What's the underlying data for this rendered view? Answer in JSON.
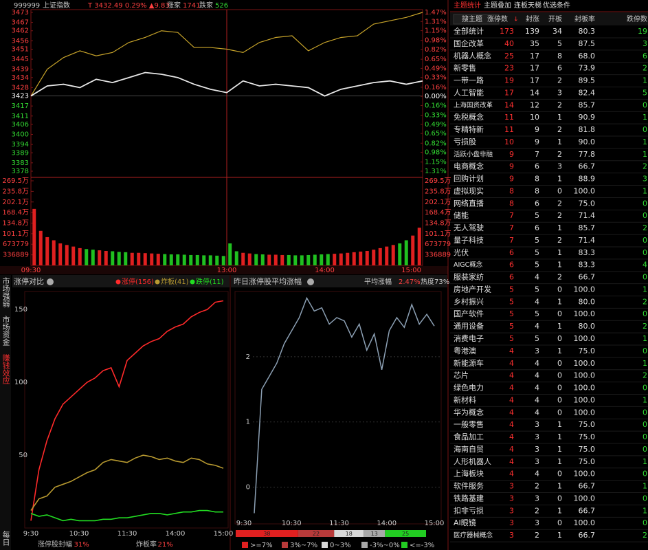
{
  "header": {
    "code": "999999",
    "name": "上证指数",
    "quote": "T 3432.49 0.29% ▲9.83",
    "up_label": "涨家",
    "up": "1741",
    "down_label": "跌家",
    "down": "526"
  },
  "intraday": {
    "price_lim": [
      3378,
      3473
    ],
    "price_ticks": [
      3473,
      3467,
      3462,
      3456,
      3451,
      3445,
      3439,
      3434,
      3428,
      3423,
      3417,
      3411,
      3406,
      3400,
      3394,
      3389,
      3383,
      3378
    ],
    "pct_ticks": [
      {
        "value": 1.47,
        "label": "1.47%"
      },
      {
        "value": 1.31,
        "label": "1.31%"
      },
      {
        "value": 1.15,
        "label": "1.15%"
      },
      {
        "value": 0.98,
        "label": "0.98%"
      },
      {
        "value": 0.82,
        "label": "0.82%"
      },
      {
        "value": 0.65,
        "label": "0.65%"
      },
      {
        "value": 0.49,
        "label": "0.49%"
      },
      {
        "value": 0.33,
        "label": "0.33%"
      },
      {
        "value": 0.16,
        "label": "0.16%"
      },
      {
        "value": 0,
        "label": "0.00%"
      },
      {
        "value": -0.16,
        "label": "0.16%"
      },
      {
        "value": -0.33,
        "label": "0.33%"
      },
      {
        "value": -0.49,
        "label": "0.49%"
      },
      {
        "value": -0.65,
        "label": "0.65%"
      },
      {
        "value": -0.82,
        "label": "0.82%"
      },
      {
        "value": -0.98,
        "label": "0.98%"
      },
      {
        "value": -1.15,
        "label": "1.15%"
      },
      {
        "value": -1.31,
        "label": "1.31%"
      }
    ],
    "pct_lim": [
      -1.31,
      1.47
    ],
    "price": {
      "color": "#e8e8e8",
      "values": [
        3423,
        3429,
        3430,
        3428,
        3433,
        3431,
        3434,
        3437,
        3436,
        3434,
        3430,
        3427,
        3425,
        3432,
        3429,
        3430,
        3429,
        3428,
        3423,
        3427,
        3429,
        3431,
        3432,
        3430,
        3432
      ]
    },
    "average": {
      "color": "#c8a42a",
      "values": [
        3423,
        3439,
        3446,
        3450,
        3447,
        3449,
        3455,
        3458,
        3462,
        3461,
        3452,
        3452,
        3451,
        3449,
        3455,
        3458,
        3459,
        3450,
        3455,
        3458,
        3459,
        3466,
        3468,
        3470,
        3473
      ]
    },
    "vol_lim": [
      0,
      2695000
    ],
    "vol_ticks": [
      {
        "value": 2695000,
        "label": "269.5万"
      },
      {
        "value": 2358000,
        "label": "235.8万"
      },
      {
        "value": 2021000,
        "label": "202.1万"
      },
      {
        "value": 1684000,
        "label": "168.4万"
      },
      {
        "value": 1348000,
        "label": "134.8万"
      },
      {
        "value": 1011000,
        "label": "101.1万"
      },
      673779,
      336889
    ],
    "volume": [
      1800000,
      1100000,
      900000,
      800000,
      700000,
      650000,
      600000,
      550000,
      520000,
      500000,
      480000,
      460000,
      450000,
      430000,
      420000,
      400000,
      400000,
      390000,
      380000,
      370000,
      360000,
      350000,
      350000,
      340000,
      330000,
      330000,
      320000,
      320000,
      310000,
      300000,
      700000,
      450000,
      400000,
      380000,
      360000,
      350000,
      340000,
      340000,
      330000,
      330000,
      320000,
      320000,
      330000,
      340000,
      350000,
      360000,
      370000,
      380000,
      400000,
      420000,
      440000,
      460000,
      500000,
      550000,
      600000,
      650000,
      700000,
      800000,
      950000,
      1200000
    ],
    "time_labels": [
      "09:30",
      "13:00",
      "14:00",
      "15:00"
    ]
  },
  "side_tabs": [
    "市场强弱",
    "市场资金",
    "赚钱效应",
    "每日"
  ],
  "limit": {
    "title": "涨停对比",
    "ylim": [
      0,
      160
    ],
    "yticks": [
      50,
      100,
      150
    ],
    "time_labels": [
      "9:30",
      "10:30",
      "11:30",
      "14:00",
      "15:00"
    ],
    "series": [
      {
        "name": "涨停(156)",
        "color": "#ff2a2a",
        "values": [
          5,
          40,
          60,
          75,
          85,
          90,
          95,
          100,
          103,
          108,
          110,
          97,
          115,
          120,
          125,
          128,
          130,
          135,
          138,
          140,
          145,
          148,
          150,
          155,
          156
        ]
      },
      {
        "name": "炸板(41)",
        "color": "#b89a30",
        "values": [
          12,
          20,
          22,
          28,
          30,
          32,
          35,
          38,
          40,
          45,
          47,
          46,
          45,
          48,
          50,
          49,
          47,
          48,
          46,
          45,
          48,
          47,
          44,
          43,
          41
        ]
      },
      {
        "name": "跌停(11)",
        "color": "#22dd22",
        "values": [
          10,
          8,
          9,
          7,
          5,
          6,
          5,
          5,
          5,
          6,
          6,
          7,
          7,
          8,
          9,
          10,
          10,
          9,
          10,
          11,
          11,
          12,
          12,
          11,
          11
        ]
      }
    ],
    "footer": [
      {
        "label": "涨停股封幅",
        "value": "31%"
      },
      {
        "label": "炸板率",
        "value": "21%"
      }
    ]
  },
  "yesterday": {
    "title": "昨日涨停股平均涨幅",
    "avg_label": "平均涨幅",
    "avg_value": "2.47%",
    "heat": "热度73%",
    "ylim": [
      -0.5,
      3
    ],
    "yticks": [
      0,
      1,
      2
    ],
    "time_labels": [
      "9:30",
      "10:30",
      "11:30",
      "14:00",
      "15:00"
    ],
    "line": {
      "color": "#8ca0b4",
      "values": [
        -0.4,
        1.5,
        1.7,
        1.9,
        2.2,
        2.4,
        2.6,
        2.9,
        2.7,
        2.75,
        2.5,
        2.6,
        2.55,
        2.3,
        2.5,
        2.1,
        2.35,
        1.8,
        2.4,
        2.6,
        2.45,
        2.8,
        2.5,
        2.65,
        2.47
      ]
    },
    "distribution": [
      {
        "label": ">=7%",
        "count": 38,
        "color": "#e02020"
      },
      {
        "label": "3%~7%",
        "count": 22,
        "color": "#b83a3a"
      },
      {
        "label": "0~3%",
        "count": 18,
        "color": "#d8d8d8"
      },
      {
        "label": "-3%~0%",
        "count": 13,
        "color": "#a8a8a8"
      },
      {
        "label": "<=-3%",
        "count": 25,
        "color": "#22cc22"
      }
    ]
  },
  "table": {
    "tabs": [
      "主题统计",
      "主题叠加",
      "连板天梯",
      "优选条件"
    ],
    "search": "搜主题",
    "columns": [
      "涨停数",
      "封涨",
      "开板",
      "封板率",
      "跌停数"
    ],
    "rows": [
      [
        "全部统计",
        "173",
        "139",
        "34",
        "80.3",
        "19"
      ],
      [
        "国企改革",
        "40",
        "35",
        "5",
        "87.5",
        "3"
      ],
      [
        "机器人概念",
        "25",
        "17",
        "8",
        "68.0",
        "6"
      ],
      [
        "新零售",
        "23",
        "17",
        "6",
        "73.9",
        "2"
      ],
      [
        "一带一路",
        "19",
        "17",
        "2",
        "89.5",
        "1"
      ],
      [
        "人工智能",
        "17",
        "14",
        "3",
        "82.4",
        "5"
      ],
      [
        "上海国资改革",
        "14",
        "12",
        "2",
        "85.7",
        "0"
      ],
      [
        "免税概念",
        "11",
        "10",
        "1",
        "90.9",
        "1"
      ],
      [
        "专精特新",
        "11",
        "9",
        "2",
        "81.8",
        "0"
      ],
      [
        "亏损股",
        "10",
        "9",
        "1",
        "90.0",
        "1"
      ],
      [
        "活跃小盘非融",
        "9",
        "7",
        "2",
        "77.8",
        "1"
      ],
      [
        "电商概念",
        "9",
        "6",
        "3",
        "66.7",
        "2"
      ],
      [
        "回购计划",
        "9",
        "8",
        "1",
        "88.9",
        "3"
      ],
      [
        "虚拟现实",
        "8",
        "8",
        "0",
        "100.0",
        "1"
      ],
      [
        "网络直播",
        "8",
        "6",
        "2",
        "75.0",
        "0"
      ],
      [
        "储能",
        "7",
        "5",
        "2",
        "71.4",
        "0"
      ],
      [
        "无人驾驶",
        "7",
        "6",
        "1",
        "85.7",
        "2"
      ],
      [
        "量子科技",
        "7",
        "5",
        "2",
        "71.4",
        "0"
      ],
      [
        "光伏",
        "6",
        "5",
        "1",
        "83.3",
        "0"
      ],
      [
        "AIGC概念",
        "6",
        "5",
        "1",
        "83.3",
        "4"
      ],
      [
        "服装家纺",
        "6",
        "4",
        "2",
        "66.7",
        "0"
      ],
      [
        "房地产开发",
        "5",
        "5",
        "0",
        "100.0",
        "1"
      ],
      [
        "乡村振兴",
        "5",
        "4",
        "1",
        "80.0",
        "2"
      ],
      [
        "国产软件",
        "5",
        "5",
        "0",
        "100.0",
        "0"
      ],
      [
        "通用设备",
        "5",
        "4",
        "1",
        "80.0",
        "2"
      ],
      [
        "消费电子",
        "5",
        "5",
        "0",
        "100.0",
        "1"
      ],
      [
        "粤港澳",
        "4",
        "3",
        "1",
        "75.0",
        "0"
      ],
      [
        "新能源车",
        "4",
        "4",
        "0",
        "100.0",
        "1"
      ],
      [
        "芯片",
        "4",
        "4",
        "0",
        "100.0",
        "2"
      ],
      [
        "绿色电力",
        "4",
        "4",
        "0",
        "100.0",
        "0"
      ],
      [
        "新材料",
        "4",
        "4",
        "0",
        "100.0",
        "1"
      ],
      [
        "华为概念",
        "4",
        "4",
        "0",
        "100.0",
        "0"
      ],
      [
        "一般零售",
        "4",
        "3",
        "1",
        "75.0",
        "0"
      ],
      [
        "食品加工",
        "4",
        "3",
        "1",
        "75.0",
        "0"
      ],
      [
        "海南自贸",
        "4",
        "3",
        "1",
        "75.0",
        "0"
      ],
      [
        "人形机器人",
        "4",
        "3",
        "1",
        "75.0",
        "1"
      ],
      [
        "上海板块",
        "4",
        "4",
        "0",
        "100.0",
        "0"
      ],
      [
        "软件服务",
        "3",
        "2",
        "1",
        "66.7",
        "1"
      ],
      [
        "铁路基建",
        "3",
        "3",
        "0",
        "100.0",
        "0"
      ],
      [
        "扣非亏损",
        "3",
        "2",
        "1",
        "66.7",
        "1"
      ],
      [
        "AI眼镜",
        "3",
        "3",
        "0",
        "100.0",
        "0"
      ],
      [
        "医疗器械概念",
        "3",
        "2",
        "1",
        "66.7",
        "2"
      ]
    ]
  }
}
